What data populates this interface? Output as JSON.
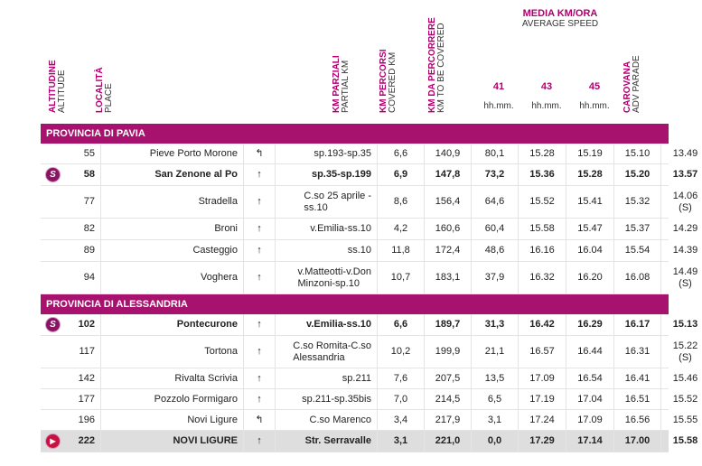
{
  "header": {
    "altitude": {
      "main": "ALTITUDINE",
      "sub": "ALTITUDE"
    },
    "place": {
      "main": "LOCALITÀ",
      "sub": "PLACE"
    },
    "partial": {
      "main": "KM PARZIALI",
      "sub": "PARTIAL KM"
    },
    "covered": {
      "main": "KM PERCORSI",
      "sub": "COVERED KM"
    },
    "to_cover": {
      "main": "KM DA PERCORRERE",
      "sub": "KM TO BE COVERED"
    },
    "media": {
      "main": "MEDIA KM/ORA",
      "sub": "AVERAGE SPEED"
    },
    "speeds": [
      "41",
      "43",
      "45"
    ],
    "hhmm": "hh.mm.",
    "caravan": {
      "main": "CAROVANA",
      "sub": "ADV PARADE"
    }
  },
  "sections": [
    {
      "title": "PROVINCIA DI PAVIA"
    },
    {
      "title": "PROVINCIA DI ALESSANDRIA"
    }
  ],
  "rows": [
    {
      "alt": "55",
      "place": "Pieve Porto Morone",
      "dir": "↰",
      "road": [
        "sp.193-sp.35"
      ],
      "partial": "6,6",
      "covered": "140,9",
      "remaining": "80,1",
      "t41": "15.28",
      "t43": "15.19",
      "t45": "15.10",
      "car": [
        "13.49"
      ]
    },
    {
      "alt": "58",
      "place": "San Zenone al Po",
      "dir": "↑",
      "road": [
        "sp.35-sp.199"
      ],
      "partial": "6,9",
      "covered": "147,8",
      "remaining": "73,2",
      "t41": "15.36",
      "t43": "15.28",
      "t45": "15.20",
      "car": [
        "13.57"
      ]
    },
    {
      "alt": "77",
      "place": "Stradella",
      "dir": "↑",
      "road": [
        "C.so 25 aprile -",
        "ss.10"
      ],
      "partial": "8,6",
      "covered": "156,4",
      "remaining": "64,6",
      "t41": "15.52",
      "t43": "15.41",
      "t45": "15.32",
      "car": [
        "14.06",
        "(S)"
      ]
    },
    {
      "alt": "82",
      "place": "Broni",
      "dir": "↑",
      "road": [
        "v.Emilia-ss.10"
      ],
      "partial": "4,2",
      "covered": "160,6",
      "remaining": "60,4",
      "t41": "15.58",
      "t43": "15.47",
      "t45": "15.37",
      "car": [
        "14.29"
      ]
    },
    {
      "alt": "89",
      "place": "Casteggio",
      "dir": "↑",
      "road": [
        "ss.10"
      ],
      "partial": "11,8",
      "covered": "172,4",
      "remaining": "48,6",
      "t41": "16.16",
      "t43": "16.04",
      "t45": "15.54",
      "car": [
        "14.39"
      ]
    },
    {
      "alt": "94",
      "place": "Voghera",
      "dir": "↑",
      "road": [
        "v.Matteotti-v.Don",
        "Minzoni-sp.10"
      ],
      "partial": "10,7",
      "covered": "183,1",
      "remaining": "37,9",
      "t41": "16.32",
      "t43": "16.20",
      "t45": "16.08",
      "car": [
        "14.49",
        "(S)"
      ]
    },
    {
      "alt": "102",
      "place": "Pontecurone",
      "dir": "↑",
      "road": [
        "v.Emilia-ss.10"
      ],
      "partial": "6,6",
      "covered": "189,7",
      "remaining": "31,3",
      "t41": "16.42",
      "t43": "16.29",
      "t45": "16.17",
      "car": [
        "15.13"
      ]
    },
    {
      "alt": "117",
      "place": "Tortona",
      "dir": "↑",
      "road": [
        "C.so Romita-C.so",
        "Alessandria"
      ],
      "partial": "10,2",
      "covered": "199,9",
      "remaining": "21,1",
      "t41": "16.57",
      "t43": "16.44",
      "t45": "16.31",
      "car": [
        "15.22",
        "(S)"
      ]
    },
    {
      "alt": "142",
      "place": "Rivalta Scrivia",
      "dir": "↑",
      "road": [
        "sp.211"
      ],
      "partial": "7,6",
      "covered": "207,5",
      "remaining": "13,5",
      "t41": "17.09",
      "t43": "16.54",
      "t45": "16.41",
      "car": [
        "15.46"
      ]
    },
    {
      "alt": "177",
      "place": "Pozzolo Formigaro",
      "dir": "↑",
      "road": [
        "sp.211-sp.35bis"
      ],
      "partial": "7,0",
      "covered": "214,5",
      "remaining": "6,5",
      "t41": "17.19",
      "t43": "17.04",
      "t45": "16.51",
      "car": [
        "15.52"
      ]
    },
    {
      "alt": "196",
      "place": "Novi Ligure",
      "dir": "↰",
      "road": [
        "C.so Marenco"
      ],
      "partial": "3,4",
      "covered": "217,9",
      "remaining": "3,1",
      "t41": "17.24",
      "t43": "17.09",
      "t45": "16.56",
      "car": [
        "15.55"
      ]
    },
    {
      "alt": "222",
      "place": "NOVI LIGURE",
      "dir": "↑",
      "road": [
        "Str. Serravalle"
      ],
      "partial": "3,1",
      "covered": "221,0",
      "remaining": "0,0",
      "t41": "17.29",
      "t43": "17.14",
      "t45": "17.00",
      "car": [
        "15.58"
      ]
    }
  ],
  "badges": {
    "sprint": "S",
    "finish": "▶"
  },
  "colors": {
    "accent": "#b0006f",
    "section_bg": "#a8126f",
    "final_bg": "#dedede"
  }
}
